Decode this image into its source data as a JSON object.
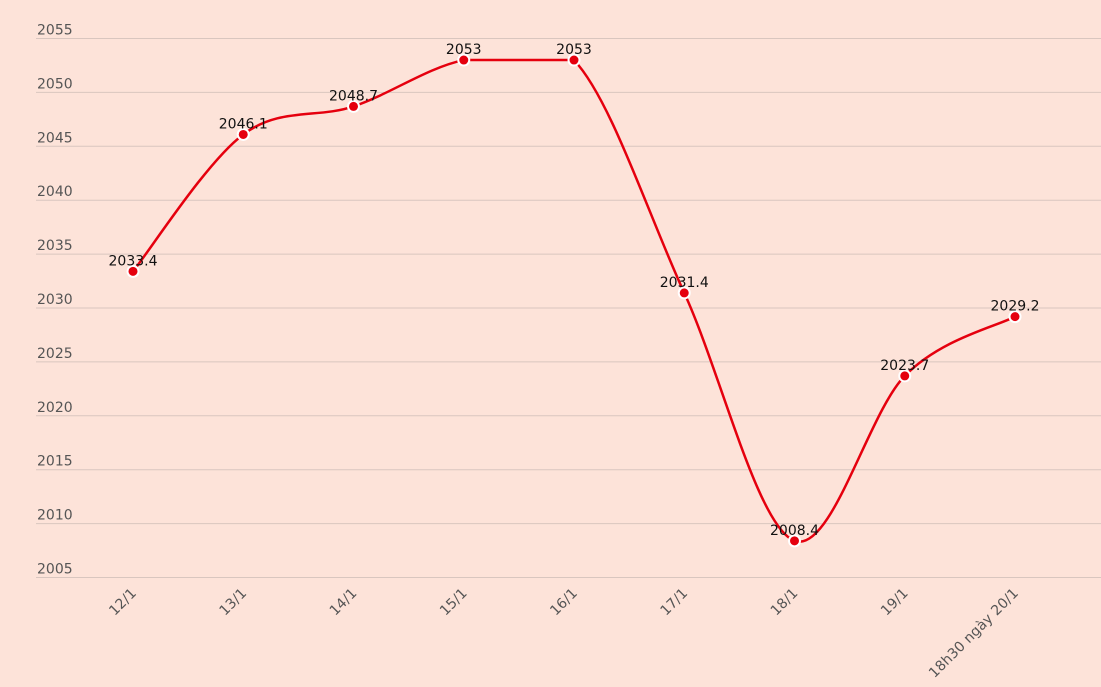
{
  "chart_data": {
    "type": "line",
    "categories": [
      "12/1",
      "13/1",
      "14/1",
      "15/1",
      "16/1",
      "17/1",
      "18/1",
      "19/1",
      "18h30 ngày 20/1"
    ],
    "values": [
      2033.4,
      2046.1,
      2048.7,
      2053,
      2053,
      2031.4,
      2008.4,
      2023.7,
      2029.2
    ],
    "data_labels": [
      "2033.4",
      "2046.1",
      "2048.7",
      "2053",
      "2053",
      "2031.4",
      "2008.4",
      "2023.7",
      "2029.2"
    ],
    "y_ticks": [
      "2005",
      "2010",
      "2015",
      "2020",
      "2025",
      "2030",
      "2035",
      "2040",
      "2045",
      "2050",
      "2055"
    ],
    "ylim": [
      2005,
      2055
    ],
    "title": "",
    "xlabel": "",
    "ylabel": "",
    "grid": true,
    "legend": "none",
    "line_color": "#e5000e",
    "marker_color": "#e5000e",
    "marker_outline": "#ffffff",
    "background_color": "#fde3d9"
  }
}
